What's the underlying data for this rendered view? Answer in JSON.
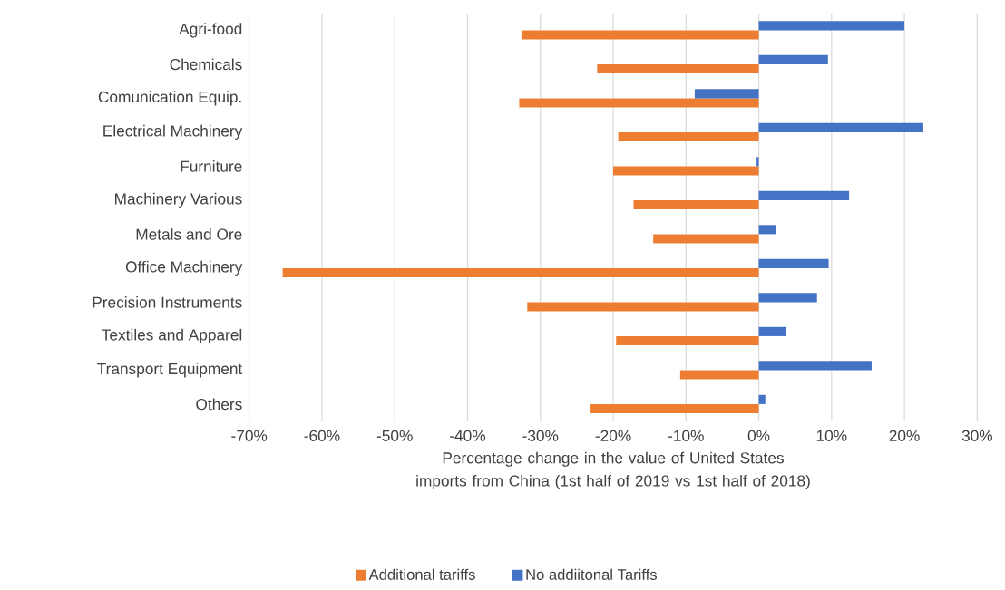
{
  "chart_data": {
    "type": "bar",
    "orientation": "horizontal",
    "xlabel": "Percentage change in the value of United States imports from China (1st half of 2019 vs 1st half of 2018)",
    "categories": [
      "Agri-food",
      "Chemicals",
      "Comunication Equip.",
      "Electrical Machinery",
      "Furniture",
      "Machinery Various",
      "Metals and Ore",
      "Office Machinery",
      "Precision Instruments",
      "Textiles and Apparel",
      "Transport Equipment",
      "Others"
    ],
    "series": [
      {
        "name": "Additional tariffs",
        "color": "#ed7d31",
        "values": [
          -32.6,
          -22.2,
          -32.9,
          -19.3,
          -20.0,
          -17.2,
          -14.5,
          -65.4,
          -31.8,
          -19.6,
          -10.8,
          -23.1
        ]
      },
      {
        "name": "No addiitonal Tariffs",
        "color": "#4472c4",
        "values": [
          20.0,
          9.5,
          -8.8,
          22.6,
          -0.3,
          12.4,
          2.3,
          9.6,
          8.0,
          3.8,
          15.5,
          0.9
        ]
      }
    ],
    "xlim": [
      -70,
      30
    ],
    "xticks": [
      {
        "value": -70,
        "label": "-70%"
      },
      {
        "value": -60,
        "label": "-60%"
      },
      {
        "value": -50,
        "label": "-50%"
      },
      {
        "value": -40,
        "label": "-40%"
      },
      {
        "value": -30,
        "label": "-30%"
      },
      {
        "value": -20,
        "label": "-20%"
      },
      {
        "value": -10,
        "label": "-10%"
      },
      {
        "value": 0,
        "label": "0%"
      },
      {
        "value": 10,
        "label": "10%"
      },
      {
        "value": 20,
        "label": "20%"
      },
      {
        "value": 30,
        "label": "30%"
      }
    ],
    "grid": "x",
    "legend": "bottom"
  }
}
